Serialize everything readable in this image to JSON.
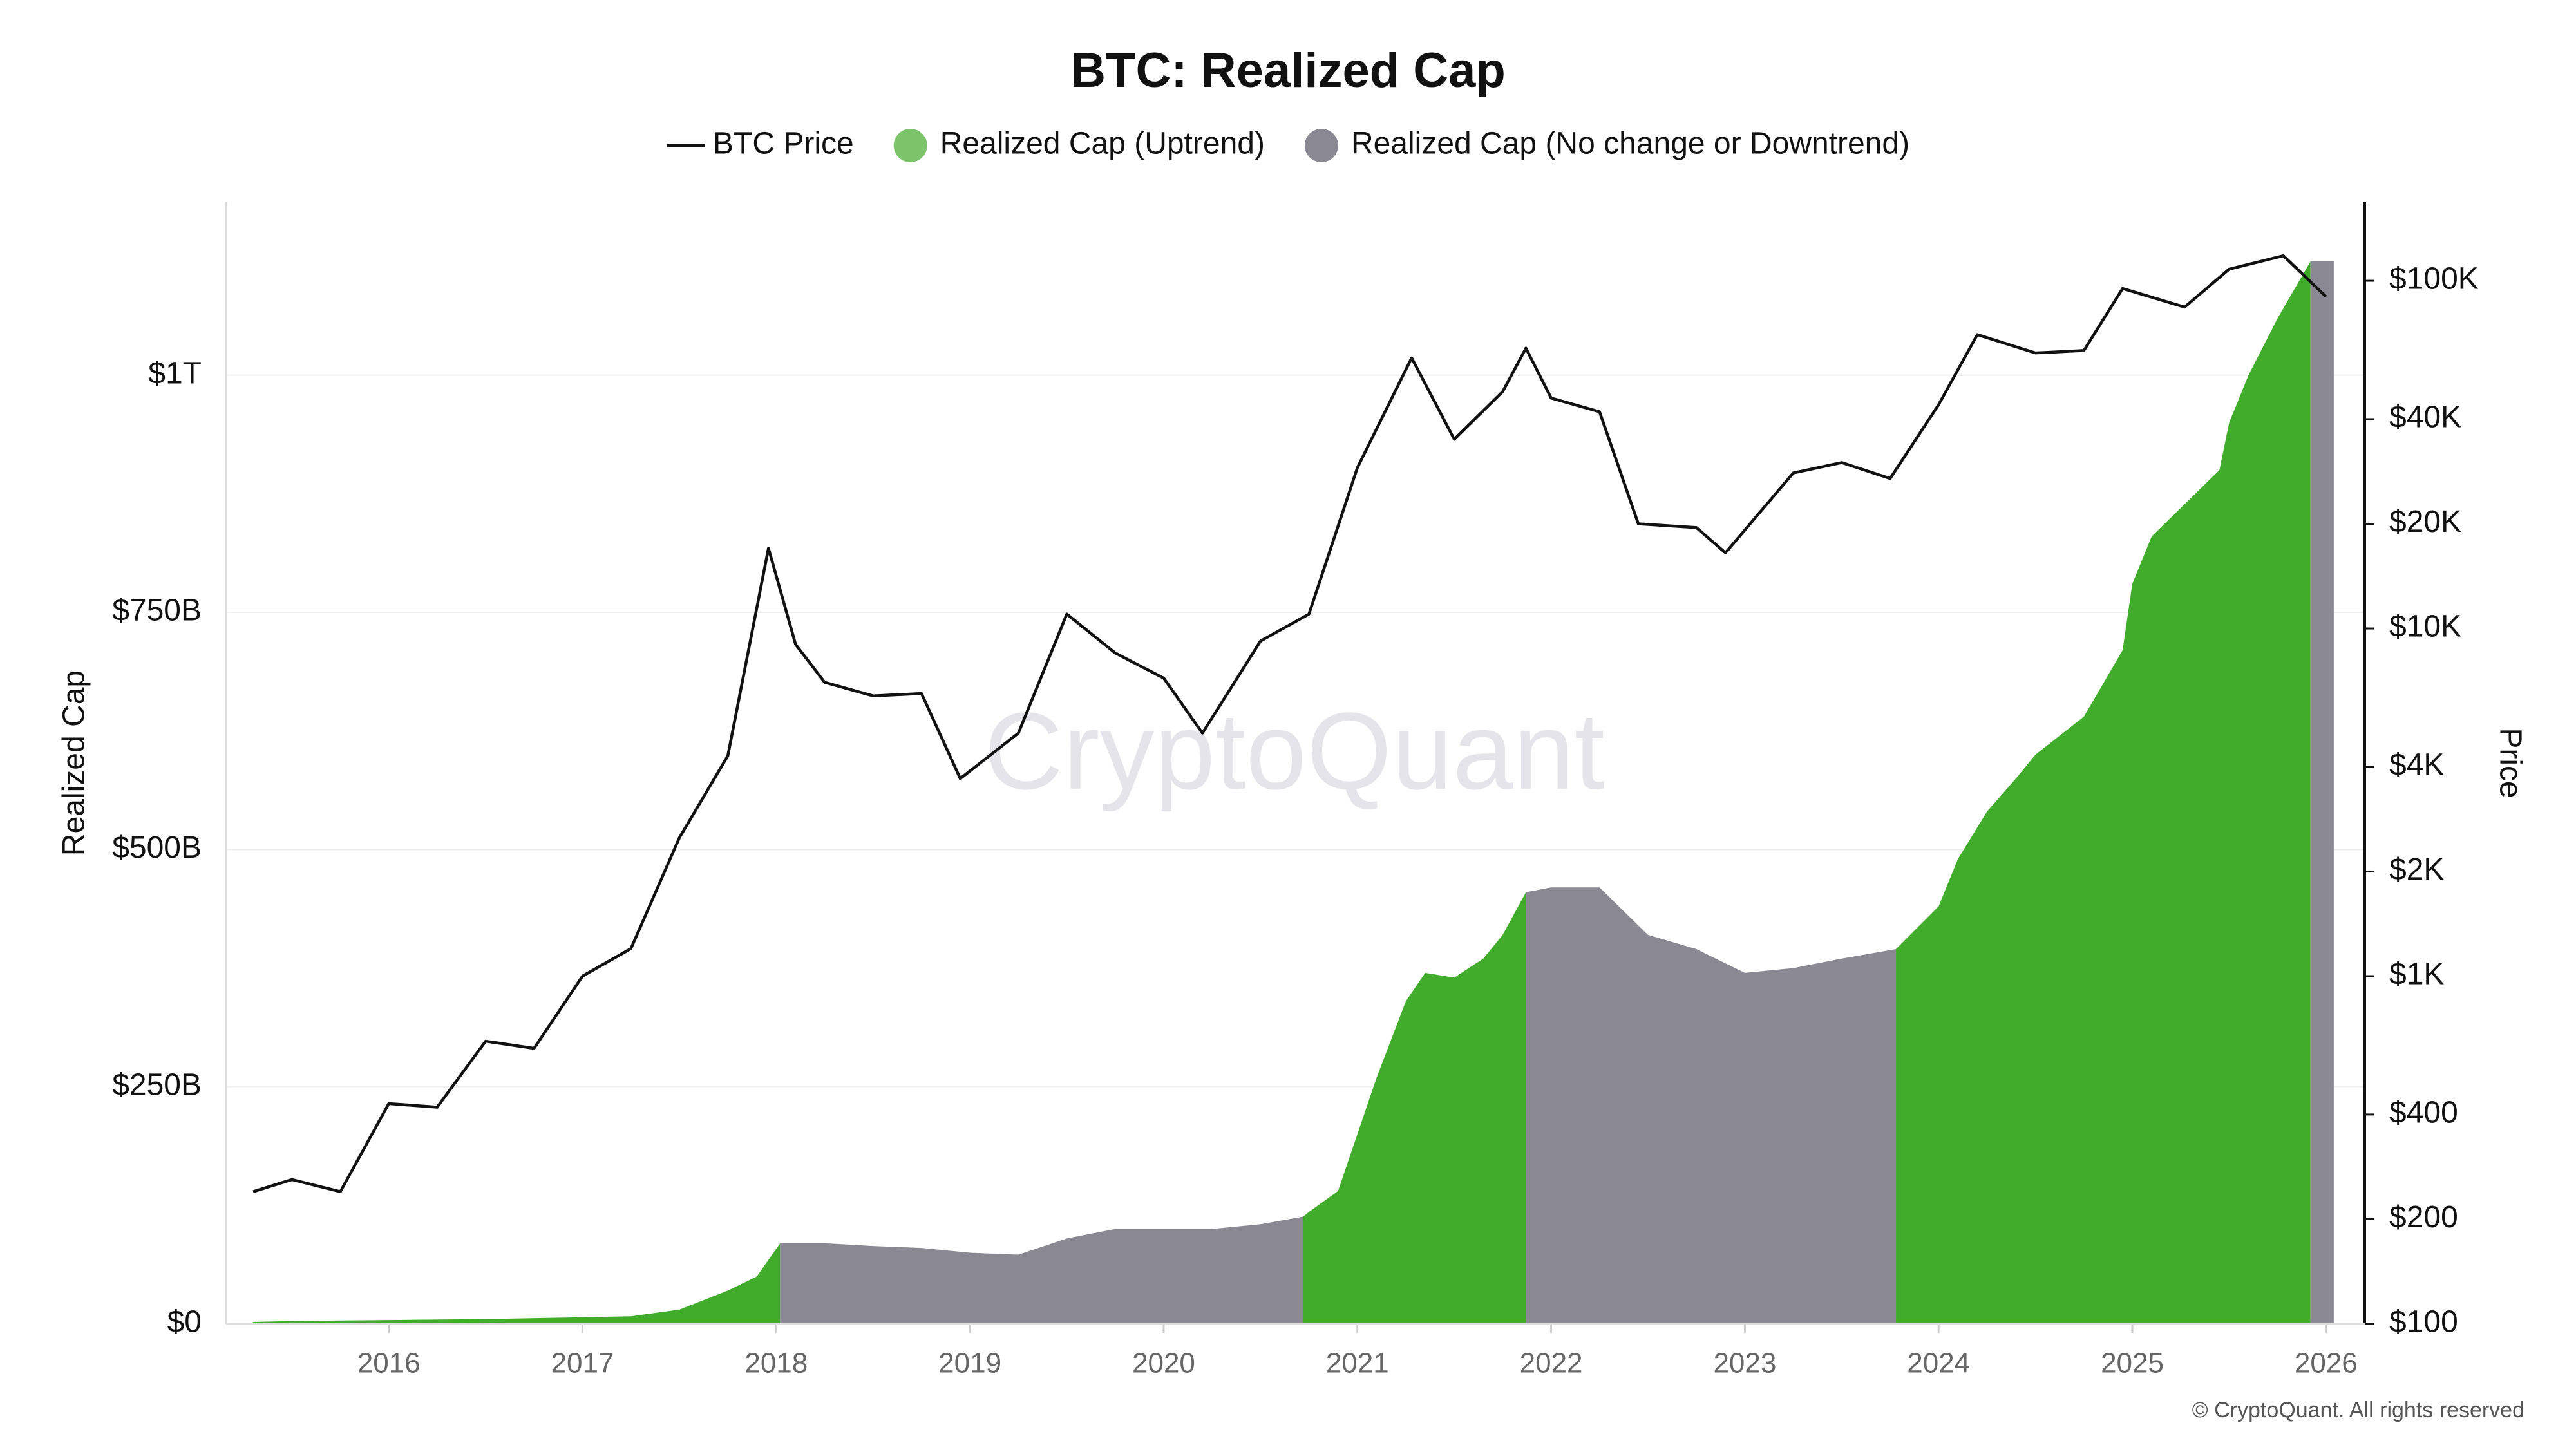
{
  "chart_data": {
    "type": "area-line",
    "title": "BTC: Realized Cap",
    "watermark": "CryptoQuant",
    "credit": "© CryptoQuant. All rights reserved",
    "ylabel": "Realized Cap",
    "y2label": "Price",
    "xlim": [
      2015.16,
      2026.2
    ],
    "xticks": [
      2016,
      2017,
      2018,
      2019,
      2020,
      2021,
      2022,
      2023,
      2024,
      2025,
      2026
    ],
    "ylim": [
      0,
      1183
    ],
    "yticks": [
      {
        "value": 0,
        "label": "$0"
      },
      {
        "value": 250,
        "label": "$250B"
      },
      {
        "value": 500,
        "label": "$500B"
      },
      {
        "value": 750,
        "label": "$750B"
      },
      {
        "value": 1000,
        "label": "$1T"
      }
    ],
    "y2lim": [
      100,
      169000
    ],
    "y2scale": "log",
    "y2ticks": [
      {
        "value": 100,
        "label": "$100"
      },
      {
        "value": 200,
        "label": "$200"
      },
      {
        "value": 400,
        "label": "$400"
      },
      {
        "value": 1000,
        "label": "$1K"
      },
      {
        "value": 2000,
        "label": "$2K"
      },
      {
        "value": 4000,
        "label": "$4K"
      },
      {
        "value": 10000,
        "label": "$10K"
      },
      {
        "value": 20000,
        "label": "$20K"
      },
      {
        "value": 40000,
        "label": "$40K"
      },
      {
        "value": 100000,
        "label": "$100K"
      }
    ],
    "grid": true,
    "series": [
      {
        "name": "Realized Cap (Uptrend)",
        "kind": "area",
        "color": "#41ab2b",
        "legend_color": "#7cc46a",
        "x": [
          2015.3,
          2015.5,
          2016,
          2016.5,
          2017,
          2017.25,
          2017.5,
          2017.75,
          2017.9,
          2018.02,
          null,
          2020.72,
          2020.75,
          2020.9,
          2021.0,
          2021.1,
          2021.25,
          2021.35,
          2021.5,
          2021.65,
          2021.75,
          2021.87,
          null,
          2023.78,
          2024.0,
          2024.1,
          2024.25,
          2024.4,
          2024.5,
          2024.75,
          2024.95,
          2025.0,
          2025.1,
          2025.25,
          2025.45,
          2025.5,
          2025.6,
          2025.75,
          2025.92
        ],
        "values": [
          2,
          3,
          4,
          5,
          7,
          8,
          15,
          35,
          50,
          85,
          null,
          113,
          118,
          140,
          200,
          260,
          340,
          370,
          365,
          385,
          410,
          455,
          null,
          395,
          440,
          490,
          540,
          575,
          600,
          640,
          710,
          780,
          830,
          860,
          900,
          950,
          1000,
          1060,
          1120
        ]
      },
      {
        "name": "Realized Cap (No change or Downtrend)",
        "kind": "area",
        "color": "#8a8893",
        "legend_color": "#8a8893",
        "x": [
          2018.02,
          2018.25,
          2018.5,
          2018.75,
          2019.0,
          2019.25,
          2019.5,
          2019.75,
          2020.0,
          2020.25,
          2020.5,
          2020.72,
          null,
          2021.87,
          2022.0,
          2022.25,
          2022.4,
          2022.5,
          2022.75,
          2023.0,
          2023.25,
          2023.5,
          2023.78,
          null,
          2025.92,
          2026.04
        ],
        "values": [
          85,
          85,
          82,
          80,
          75,
          73,
          90,
          100,
          100,
          100,
          105,
          113,
          null,
          455,
          460,
          460,
          430,
          410,
          395,
          370,
          375,
          385,
          395,
          null,
          1120,
          1120
        ]
      },
      {
        "name": "BTC Price",
        "kind": "line",
        "axis": "y2",
        "color": "#111111",
        "x": [
          2015.3,
          2015.5,
          2015.75,
          2016.0,
          2016.25,
          2016.5,
          2016.75,
          2017.0,
          2017.25,
          2017.5,
          2017.75,
          2017.96,
          2018.1,
          2018.25,
          2018.5,
          2018.75,
          2018.95,
          2019.25,
          2019.5,
          2019.75,
          2020.0,
          2020.2,
          2020.5,
          2020.75,
          2021.0,
          2021.28,
          2021.5,
          2021.75,
          2021.87,
          2022.0,
          2022.25,
          2022.45,
          2022.75,
          2022.9,
          2023.25,
          2023.5,
          2023.75,
          2024.0,
          2024.2,
          2024.5,
          2024.75,
          2024.95,
          2025.27,
          2025.5,
          2025.78,
          2026.0
        ],
        "values": [
          240,
          260,
          240,
          430,
          420,
          650,
          620,
          1000,
          1200,
          2500,
          4300,
          17000,
          9000,
          7000,
          6400,
          6500,
          3700,
          5000,
          11000,
          8500,
          7200,
          5000,
          9200,
          11000,
          29000,
          60000,
          35000,
          48000,
          64000,
          46000,
          42000,
          20000,
          19500,
          16500,
          28000,
          30000,
          27000,
          44000,
          70000,
          62000,
          63000,
          95000,
          84000,
          108000,
          118000,
          90000
        ]
      }
    ]
  }
}
